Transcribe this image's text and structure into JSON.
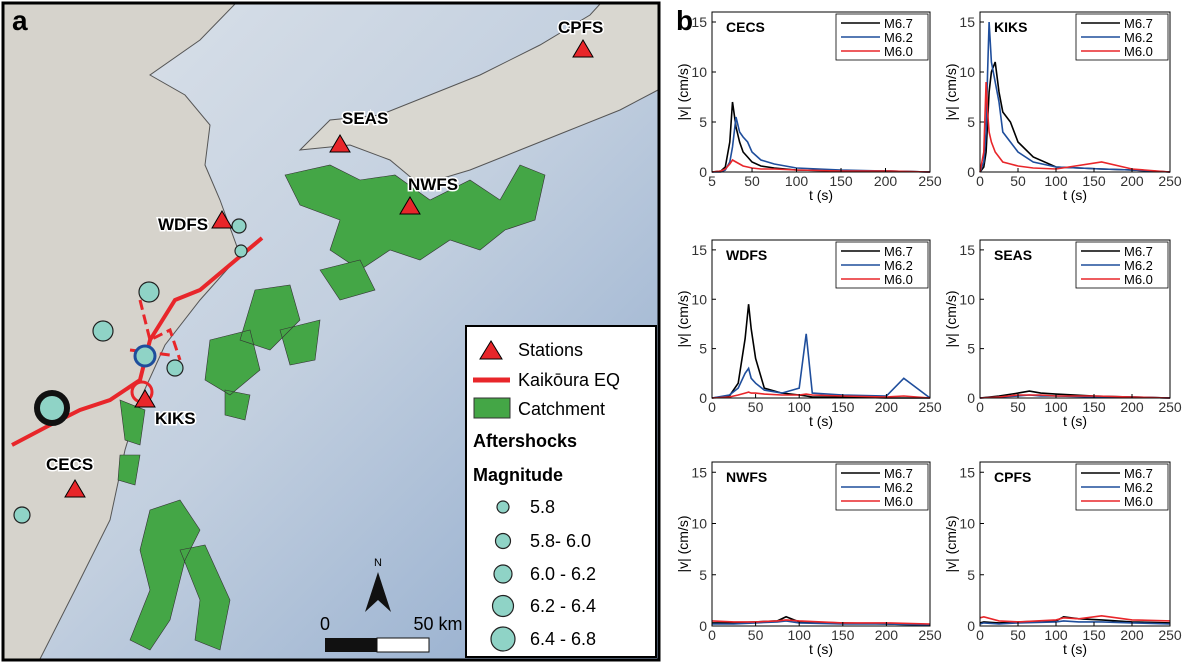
{
  "panel_labels": [
    "a",
    "b"
  ],
  "map": {
    "stations": [
      "CPFS",
      "SEAS",
      "NWFS",
      "WDFS",
      "KIKS",
      "CECS"
    ],
    "legend": {
      "items": [
        "Stations",
        "Kaikōura EQ",
        "Catchment"
      ],
      "aftershocks_title": "Aftershocks",
      "magnitude_title": "Magnitude",
      "magnitudes": [
        "5.8",
        "5.8- 6.0",
        "6.0 - 6.2",
        "6.2 - 6.4",
        "6.4 - 6.8"
      ]
    },
    "scale_bar": [
      "0",
      "50 km"
    ],
    "north": "N"
  },
  "chart_data": [
    {
      "type": "line",
      "title": "CECS",
      "xlabel": "t (s)",
      "ylabel": "|v| (cm/s)",
      "xlim": [
        5,
        250
      ],
      "xticks": [
        5,
        50,
        100,
        150,
        200,
        250
      ],
      "ylim": [
        0,
        16
      ],
      "yticks": [
        0,
        5,
        10,
        15
      ],
      "x": [
        5,
        15,
        20,
        25,
        28,
        32,
        36,
        40,
        45,
        50,
        60,
        75,
        100,
        150,
        200,
        250
      ],
      "series": [
        {
          "name": "M6.7",
          "color": "#000000",
          "values": [
            0,
            0.1,
            0.5,
            3,
            7,
            4.5,
            3,
            2,
            1.5,
            1,
            0.6,
            0.4,
            0.2,
            0.1,
            0.1,
            0
          ]
        },
        {
          "name": "M6.2",
          "color": "#1f4e9c",
          "values": [
            0,
            0,
            0.2,
            1,
            2.5,
            5.5,
            4,
            3.5,
            3,
            2,
            1.2,
            0.8,
            0.4,
            0.2,
            0.1,
            0
          ]
        },
        {
          "name": "M6.0",
          "color": "#e8262a",
          "values": [
            0,
            0.1,
            0.3,
            0.8,
            1.2,
            1,
            0.8,
            0.6,
            0.5,
            0.4,
            0.3,
            0.3,
            0.2,
            0.1,
            0.1,
            0
          ]
        }
      ]
    },
    {
      "type": "line",
      "title": "KIKS",
      "xlabel": "t (s)",
      "ylabel": "|v| (cm/s)",
      "xlim": [
        0,
        250
      ],
      "xticks": [
        0,
        50,
        100,
        150,
        200,
        250
      ],
      "ylim": [
        0,
        16
      ],
      "yticks": [
        0,
        5,
        10,
        15
      ],
      "x": [
        0,
        5,
        8,
        10,
        12,
        15,
        20,
        25,
        30,
        40,
        50,
        70,
        100,
        160,
        200,
        250
      ],
      "series": [
        {
          "name": "M6.7",
          "color": "#000000",
          "values": [
            0,
            0.5,
            2,
            5,
            8,
            10,
            11,
            8,
            6,
            5,
            3,
            1.5,
            0.5,
            0.3,
            0.2,
            0
          ]
        },
        {
          "name": "M6.2",
          "color": "#1f4e9c",
          "values": [
            0,
            1,
            4,
            10,
            15,
            11,
            9,
            7,
            4,
            3,
            2,
            1,
            0.5,
            0.3,
            0.2,
            0
          ]
        },
        {
          "name": "M6.0",
          "color": "#e8262a",
          "values": [
            0,
            2,
            9,
            6,
            4,
            3,
            2,
            1.5,
            1,
            0.8,
            0.6,
            0.4,
            0.3,
            1,
            0.3,
            0
          ]
        }
      ]
    },
    {
      "type": "line",
      "title": "WDFS",
      "xlabel": "t (s)",
      "ylabel": "|v| (cm/s)",
      "xlim": [
        0,
        250
      ],
      "xticks": [
        0,
        50,
        100,
        150,
        200,
        250
      ],
      "ylim": [
        0,
        16
      ],
      "yticks": [
        0,
        5,
        10,
        15
      ],
      "x": [
        0,
        20,
        30,
        38,
        42,
        45,
        50,
        60,
        80,
        100,
        108,
        115,
        150,
        200,
        220,
        250
      ],
      "series": [
        {
          "name": "M6.7",
          "color": "#000000",
          "values": [
            0,
            0.2,
            1.5,
            6,
            9.5,
            7,
            4,
            1,
            0.5,
            0.3,
            0.2,
            0.1,
            0.1,
            0,
            0,
            0
          ]
        },
        {
          "name": "M6.2",
          "color": "#1f4e9c",
          "values": [
            0,
            0.3,
            1,
            2.5,
            3,
            2,
            1.5,
            0.8,
            0.5,
            1,
            6.5,
            0.5,
            0.3,
            0.2,
            2,
            0
          ]
        },
        {
          "name": "M6.0",
          "color": "#e8262a",
          "values": [
            0,
            0.1,
            0.3,
            0.5,
            0.6,
            0.5,
            0.5,
            0.4,
            0.3,
            0.3,
            0.4,
            0.3,
            0.2,
            0.1,
            0.2,
            0
          ]
        }
      ]
    },
    {
      "type": "line",
      "title": "SEAS",
      "xlabel": "t (s)",
      "ylabel": "|v| (cm/s)",
      "xlim": [
        0,
        250
      ],
      "xticks": [
        0,
        50,
        100,
        150,
        200,
        250
      ],
      "ylim": [
        0,
        16
      ],
      "yticks": [
        0,
        5,
        10,
        15
      ],
      "x": [
        0,
        25,
        50,
        65,
        80,
        100,
        150,
        200,
        250
      ],
      "series": [
        {
          "name": "M6.7",
          "color": "#000000",
          "values": [
            0,
            0.2,
            0.5,
            0.7,
            0.5,
            0.4,
            0.2,
            0.1,
            0
          ]
        },
        {
          "name": "M6.2",
          "color": "#1f4e9c",
          "values": [
            0,
            0.1,
            0.2,
            0.3,
            0.2,
            0.2,
            0.1,
            0.1,
            0
          ]
        },
        {
          "name": "M6.0",
          "color": "#e8262a",
          "values": [
            0,
            0.1,
            0.3,
            0.3,
            0.3,
            0.2,
            0.2,
            0.1,
            0
          ]
        }
      ]
    },
    {
      "type": "line",
      "title": "NWFS",
      "xlabel": "t (s)",
      "ylabel": "|v| (cm/s)",
      "xlim": [
        0,
        250
      ],
      "xticks": [
        0,
        50,
        100,
        150,
        200,
        250
      ],
      "ylim": [
        0,
        16
      ],
      "yticks": [
        0,
        5,
        10,
        15
      ],
      "x": [
        0,
        25,
        50,
        75,
        85,
        100,
        150,
        200,
        250
      ],
      "series": [
        {
          "name": "M6.7",
          "color": "#000000",
          "values": [
            0.3,
            0.3,
            0.4,
            0.5,
            0.9,
            0.4,
            0.3,
            0.2,
            0.1
          ]
        },
        {
          "name": "M6.2",
          "color": "#1f4e9c",
          "values": [
            0.2,
            0.2,
            0.3,
            0.4,
            0.5,
            0.3,
            0.2,
            0.2,
            0.1
          ]
        },
        {
          "name": "M6.0",
          "color": "#e8262a",
          "values": [
            0.5,
            0.4,
            0.4,
            0.5,
            0.6,
            0.5,
            0.3,
            0.3,
            0.2
          ]
        }
      ]
    },
    {
      "type": "line",
      "title": "CPFS",
      "xlabel": "t (s)",
      "ylabel": "|v| (cm/s)",
      "xlim": [
        0,
        250
      ],
      "xticks": [
        0,
        50,
        100,
        150,
        200,
        250
      ],
      "ylim": [
        0,
        16
      ],
      "yticks": [
        0,
        5,
        10,
        15
      ],
      "x": [
        0,
        5,
        25,
        50,
        100,
        110,
        130,
        160,
        200,
        250
      ],
      "series": [
        {
          "name": "M6.7",
          "color": "#000000",
          "values": [
            0.3,
            0.4,
            0.3,
            0.4,
            0.5,
            0.9,
            0.7,
            0.6,
            0.4,
            0.3
          ]
        },
        {
          "name": "M6.2",
          "color": "#1f4e9c",
          "values": [
            0.2,
            0.3,
            0.2,
            0.3,
            0.4,
            0.5,
            0.4,
            0.4,
            0.3,
            0.2
          ]
        },
        {
          "name": "M6.0",
          "color": "#e8262a",
          "values": [
            0.8,
            0.9,
            0.5,
            0.4,
            0.6,
            0.8,
            0.7,
            1,
            0.6,
            0.5
          ]
        }
      ]
    }
  ]
}
